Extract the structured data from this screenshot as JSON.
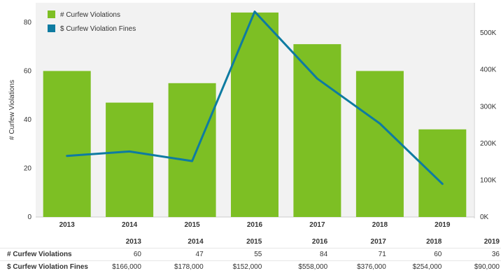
{
  "chart_data": {
    "type": "bar",
    "categories": [
      "2013",
      "2014",
      "2015",
      "2016",
      "2017",
      "2018",
      "2019"
    ],
    "series": [
      {
        "name": "# Curfew Violations",
        "type": "bar",
        "axis": "left",
        "values": [
          60,
          47,
          55,
          84,
          71,
          60,
          36
        ]
      },
      {
        "name": "$ Curfew Violation Fines",
        "type": "line",
        "axis": "right",
        "values": [
          166000,
          178000,
          152000,
          558000,
          376000,
          254000,
          90000
        ]
      }
    ],
    "ylabel": "# Curfew Violations",
    "y2label": "",
    "ylim": [
      0,
      88
    ],
    "y2lim": [
      0,
      582000
    ],
    "yticks": [
      "0",
      "20",
      "40",
      "60",
      "80"
    ],
    "y2ticks": [
      "0K",
      "100K",
      "200K",
      "300K",
      "400K",
      "500K"
    ],
    "legend_position": "top-left",
    "colors": {
      "bars": "#7dbf24",
      "line": "#0e7ba1",
      "plot_bg": "#f2f2f2"
    }
  },
  "table": {
    "headers": [
      "",
      "2013",
      "2014",
      "2015",
      "2016",
      "2017",
      "2018",
      "2019"
    ],
    "rows": [
      {
        "label": "# Curfew Violations",
        "cells": [
          "60",
          "47",
          "55",
          "84",
          "71",
          "60",
          "36"
        ]
      },
      {
        "label": "$ Curfew Violation Fines",
        "cells": [
          "$166,000",
          "$178,000",
          "$152,000",
          "$558,000",
          "$376,000",
          "$254,000",
          "$90,000"
        ]
      }
    ]
  }
}
